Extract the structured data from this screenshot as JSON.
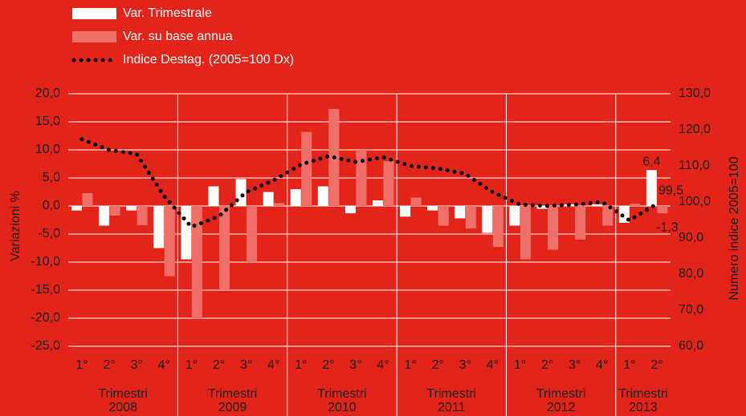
{
  "chart_data": {
    "type": "bar",
    "legend_position": "top-left",
    "ylabel": "Variazioni %",
    "y2label": "Numero indice 2005=100",
    "categories": [
      "1°",
      "2°",
      "3°",
      "4°",
      "1°",
      "2°",
      "3°",
      "4°",
      "1°",
      "2°",
      "3°",
      "4°",
      "1°",
      "2°",
      "3°",
      "4°",
      "1°",
      "2°",
      "3°",
      "4°",
      "1°",
      "2°"
    ],
    "groups": [
      {
        "label": "Trimestri",
        "year": "2008"
      },
      {
        "label": "Trimestri",
        "year": "2009"
      },
      {
        "label": "Trimestri",
        "year": "2010"
      },
      {
        "label": "Trimestri",
        "year": "2011"
      },
      {
        "label": "Trimestri",
        "year": "2012"
      },
      {
        "label": "Trimestri",
        "year": "2013"
      }
    ],
    "ylim": [
      -25,
      20
    ],
    "yticks": [
      {
        "value": -25,
        "label": "-25,0"
      },
      {
        "value": -20,
        "label": "-20,0"
      },
      {
        "value": -15,
        "label": "-15,0"
      },
      {
        "value": -10,
        "label": "-10,0"
      },
      {
        "value": -5,
        "label": "-5,0"
      },
      {
        "value": 0,
        "label": "0,0"
      },
      {
        "value": 5,
        "label": "5,0"
      },
      {
        "value": 10,
        "label": "10,0"
      },
      {
        "value": 15,
        "label": "15,0"
      },
      {
        "value": 20,
        "label": "20,0"
      }
    ],
    "y2lim": [
      60,
      130
    ],
    "y2ticks": [
      {
        "value": 60,
        "label": "60,0"
      },
      {
        "value": 70,
        "label": "70,0"
      },
      {
        "value": 80,
        "label": "80,0"
      },
      {
        "value": 90,
        "label": "90,0"
      },
      {
        "value": 100,
        "label": "100,0"
      },
      {
        "value": 110,
        "label": "110,0"
      },
      {
        "value": 120,
        "label": "120,0"
      },
      {
        "value": 130,
        "label": "130,0"
      }
    ],
    "grid": true,
    "series": [
      {
        "name": "Var. Trimestrale",
        "type": "bar",
        "color": "#ffffff",
        "values": [
          -0.8,
          -3.5,
          -0.8,
          -7.5,
          -9.5,
          3.5,
          4.8,
          2.5,
          3.0,
          3.5,
          -1.3,
          1.0,
          -1.9,
          -0.8,
          -2.2,
          -4.8,
          -3.5,
          -0.5,
          0.3,
          0.3,
          -3.0,
          6.4
        ],
        "value_labels": [
          null,
          null,
          null,
          null,
          null,
          null,
          null,
          null,
          null,
          null,
          null,
          null,
          null,
          null,
          null,
          null,
          null,
          null,
          null,
          null,
          null,
          "6,4"
        ]
      },
      {
        "name": "Var. su base annua",
        "type": "bar",
        "color": "#f07069",
        "values": [
          2.3,
          -1.7,
          -3.4,
          -12.5,
          -20.0,
          -15.0,
          -10.0,
          0.5,
          13.2,
          17.3,
          10.0,
          8.0,
          1.5,
          -3.5,
          -4.0,
          -7.3,
          -9.5,
          -7.8,
          -6.0,
          -3.5,
          0.4,
          -1.3
        ],
        "value_labels": [
          null,
          null,
          null,
          null,
          null,
          null,
          null,
          null,
          null,
          null,
          null,
          null,
          null,
          null,
          null,
          null,
          null,
          null,
          null,
          null,
          null,
          "-1,3"
        ]
      },
      {
        "name": "Indice Destag. (2005=100 Dx)",
        "type": "line",
        "axis": "y2",
        "color": "#000000",
        "values": [
          117.4,
          114.4,
          113.3,
          101.6,
          93.1,
          96.0,
          102.7,
          106.0,
          110.4,
          112.7,
          111.1,
          112.4,
          110.0,
          109.3,
          107.8,
          102.7,
          99.3,
          98.9,
          99.3,
          100.0,
          94.9,
          99.5
        ],
        "value_labels": [
          null,
          null,
          null,
          null,
          null,
          null,
          null,
          null,
          null,
          null,
          null,
          null,
          null,
          null,
          null,
          null,
          null,
          null,
          null,
          null,
          null,
          "99,5"
        ]
      }
    ]
  }
}
